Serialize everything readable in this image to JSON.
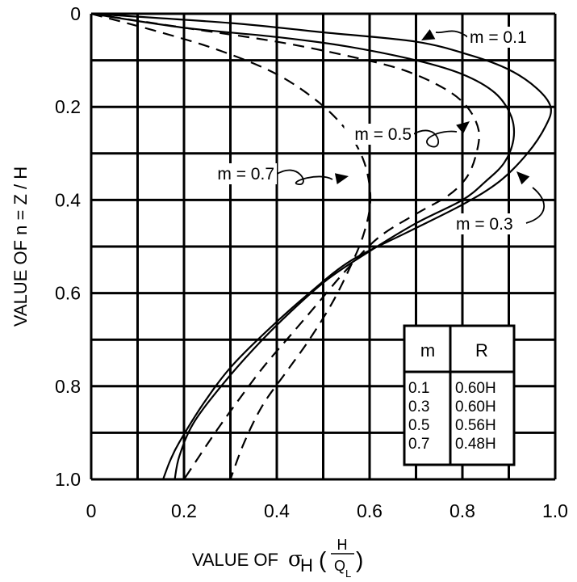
{
  "chart_data": {
    "type": "line",
    "xlabel_prefix": "VALUE OF",
    "xlabel_symbol": "σ",
    "xlabel_subscript": "H",
    "xlabel_frac_num": "H",
    "xlabel_frac_den": "Q",
    "xlabel_frac_den_sub": "L",
    "ylabel": "VALUE OF n = Z / H",
    "xlim": [
      0,
      1.0
    ],
    "ylim": [
      0,
      1.0
    ],
    "y_inverted": true,
    "grid": true,
    "x_ticks": [
      "0",
      "0.2",
      "0.4",
      "0.6",
      "0.8",
      "1.0"
    ],
    "y_ticks": [
      "0",
      "0.2",
      "0.4",
      "0.6",
      "0.8",
      "1.0"
    ],
    "series": [
      {
        "name": "m = 0.1",
        "style": "solid",
        "points": [
          [
            0,
            0
          ],
          [
            0.3,
            0.02
          ],
          [
            0.5,
            0.04
          ],
          [
            0.7,
            0.06
          ],
          [
            0.82,
            0.09
          ],
          [
            0.9,
            0.12
          ],
          [
            0.96,
            0.16
          ],
          [
            0.99,
            0.2
          ],
          [
            0.98,
            0.24
          ],
          [
            0.94,
            0.3
          ],
          [
            0.88,
            0.36
          ],
          [
            0.8,
            0.41
          ],
          [
            0.68,
            0.47
          ],
          [
            0.56,
            0.53
          ],
          [
            0.47,
            0.6
          ],
          [
            0.38,
            0.68
          ],
          [
            0.3,
            0.76
          ],
          [
            0.24,
            0.84
          ],
          [
            0.19,
            0.92
          ],
          [
            0.17,
            0.96
          ],
          [
            0.155,
            1.0
          ]
        ]
      },
      {
        "name": "m = 0.3",
        "style": "solid",
        "points": [
          [
            0,
            0
          ],
          [
            0.2,
            0.03
          ],
          [
            0.4,
            0.05
          ],
          [
            0.55,
            0.07
          ],
          [
            0.7,
            0.1
          ],
          [
            0.8,
            0.13
          ],
          [
            0.87,
            0.17
          ],
          [
            0.905,
            0.22
          ],
          [
            0.91,
            0.27
          ],
          [
            0.89,
            0.32
          ],
          [
            0.85,
            0.36
          ],
          [
            0.8,
            0.4
          ],
          [
            0.7,
            0.45
          ],
          [
            0.6,
            0.51
          ],
          [
            0.51,
            0.57
          ],
          [
            0.43,
            0.64
          ],
          [
            0.35,
            0.72
          ],
          [
            0.28,
            0.8
          ],
          [
            0.22,
            0.88
          ],
          [
            0.19,
            0.95
          ],
          [
            0.18,
            1.0
          ]
        ]
      },
      {
        "name": "m = 0.5",
        "style": "dashed",
        "points": [
          [
            0,
            0
          ],
          [
            0.2,
            0.03
          ],
          [
            0.4,
            0.06
          ],
          [
            0.55,
            0.09
          ],
          [
            0.67,
            0.12
          ],
          [
            0.76,
            0.16
          ],
          [
            0.81,
            0.2
          ],
          [
            0.835,
            0.25
          ],
          [
            0.83,
            0.3
          ],
          [
            0.81,
            0.35
          ],
          [
            0.77,
            0.39
          ],
          [
            0.7,
            0.43
          ],
          [
            0.62,
            0.48
          ],
          [
            0.55,
            0.55
          ],
          [
            0.49,
            0.62
          ],
          [
            0.43,
            0.69
          ],
          [
            0.37,
            0.76
          ],
          [
            0.31,
            0.84
          ],
          [
            0.26,
            0.91
          ],
          [
            0.2,
            1.0
          ]
        ]
      },
      {
        "name": "m = 0.7",
        "style": "dashed",
        "points": [
          [
            0,
            0
          ],
          [
            0.15,
            0.04
          ],
          [
            0.28,
            0.08
          ],
          [
            0.4,
            0.13
          ],
          [
            0.49,
            0.19
          ],
          [
            0.55,
            0.25
          ],
          [
            0.585,
            0.31
          ],
          [
            0.6,
            0.37
          ],
          [
            0.6,
            0.42
          ],
          [
            0.585,
            0.48
          ],
          [
            0.56,
            0.54
          ],
          [
            0.52,
            0.62
          ],
          [
            0.47,
            0.7
          ],
          [
            0.42,
            0.77
          ],
          [
            0.37,
            0.84
          ],
          [
            0.33,
            0.92
          ],
          [
            0.3,
            1.0
          ]
        ]
      }
    ],
    "annotations": [
      {
        "text": "m = 0.1",
        "series": "m = 0.1"
      },
      {
        "text": "m = 0.5",
        "series": "m = 0.5"
      },
      {
        "text": "m = 0.7",
        "series": "m = 0.7"
      },
      {
        "text": "m = 0.3",
        "series": "m = 0.3"
      }
    ],
    "table": {
      "headers": [
        "m",
        "R"
      ],
      "rows": [
        [
          "0.1",
          "0.60H"
        ],
        [
          "0.3",
          "0.60H"
        ],
        [
          "0.5",
          "0.56H"
        ],
        [
          "0.7",
          "0.48H"
        ]
      ]
    }
  }
}
